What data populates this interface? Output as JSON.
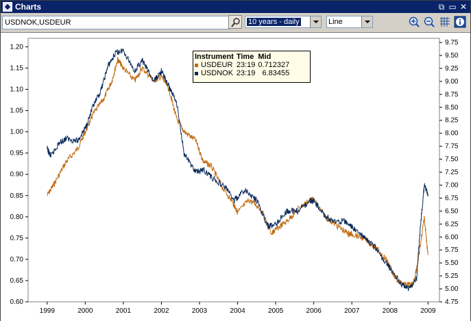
{
  "window": {
    "title": "Charts"
  },
  "titlebar_buttons": [
    {
      "icon": "restore-icon",
      "glyph": "⧉"
    },
    {
      "icon": "minimize-icon",
      "glyph": "▭"
    },
    {
      "icon": "close-icon",
      "glyph": "✕"
    }
  ],
  "toolbar": {
    "symbol_value": "USDNOK,USDEUR",
    "range_value": "10 years - daily",
    "chart_type_value": "Line",
    "tools": [
      "zoom-in-icon",
      "zoom-out-icon",
      "grid-icon",
      "info-icon"
    ]
  },
  "legend": {
    "headers": {
      "instrument": "Instrument",
      "time": "Time",
      "mid": "Mid"
    },
    "rows": [
      {
        "instrument": "USDEUR",
        "time": "23:19",
        "mid": "0.712327",
        "color": "#c06a10"
      },
      {
        "instrument": "USDNOK",
        "time": "23:19",
        "mid": "6.83455",
        "color": "#0a2a5a"
      }
    ]
  },
  "chart_data": {
    "type": "line",
    "x_ticks": [
      "1999",
      "2000",
      "2001",
      "2002",
      "2003",
      "2004",
      "2005",
      "2006",
      "2007",
      "2008",
      "2009"
    ],
    "y_left": {
      "ticks": [
        "0.60",
        "0.65",
        "0.70",
        "0.75",
        "0.80",
        "0.85",
        "0.90",
        "0.95",
        "1.00",
        "1.05",
        "1.10",
        "1.15",
        "1.20"
      ],
      "min": 0.6,
      "max": 1.22
    },
    "y_right": {
      "ticks": [
        "4.75",
        "5.00",
        "5.25",
        "5.50",
        "5.75",
        "6.00",
        "6.25",
        "6.50",
        "6.75",
        "7.00",
        "7.25",
        "7.50",
        "7.75",
        "8.00",
        "8.25",
        "8.50",
        "8.75",
        "9.00",
        "9.25",
        "9.50",
        "9.75"
      ],
      "min": 4.75,
      "max": 9.83
    },
    "series": [
      {
        "name": "USDEUR",
        "axis": "left",
        "color": "#c06a10",
        "x": [
          1999.0,
          1999.2,
          1999.5,
          1999.8,
          2000.0,
          2000.2,
          2000.5,
          2000.7,
          2000.85,
          2001.0,
          2001.3,
          2001.5,
          2001.8,
          2002.0,
          2002.2,
          2002.4,
          2002.6,
          2002.9,
          2003.1,
          2003.3,
          2003.6,
          2003.9,
          2004.0,
          2004.3,
          2004.6,
          2004.9,
          2005.0,
          2005.3,
          2005.6,
          2005.9,
          2006.0,
          2006.3,
          2006.6,
          2006.9,
          2007.0,
          2007.3,
          2007.6,
          2007.9,
          2008.0,
          2008.2,
          2008.4,
          2008.6,
          2008.75,
          2008.9,
          2009.0
        ],
        "y": [
          0.85,
          0.88,
          0.93,
          0.96,
          1.0,
          1.04,
          1.08,
          1.12,
          1.17,
          1.15,
          1.12,
          1.15,
          1.12,
          1.13,
          1.1,
          1.03,
          1.0,
          0.98,
          0.93,
          0.92,
          0.87,
          0.83,
          0.81,
          0.84,
          0.82,
          0.76,
          0.77,
          0.79,
          0.82,
          0.84,
          0.84,
          0.8,
          0.78,
          0.76,
          0.76,
          0.75,
          0.73,
          0.7,
          0.68,
          0.65,
          0.64,
          0.64,
          0.7,
          0.8,
          0.71
        ]
      },
      {
        "name": "USDNOK",
        "axis": "right",
        "color": "#0a2a5a",
        "x": [
          1999.0,
          1999.1,
          1999.3,
          1999.5,
          1999.8,
          2000.0,
          2000.2,
          2000.4,
          2000.6,
          2000.8,
          2001.0,
          2001.3,
          2001.5,
          2001.8,
          2002.0,
          2002.2,
          2002.4,
          2002.6,
          2002.9,
          2003.1,
          2003.4,
          2003.7,
          2003.9,
          2004.2,
          2004.5,
          2004.8,
          2005.0,
          2005.3,
          2005.6,
          2005.9,
          2006.0,
          2006.3,
          2006.5,
          2006.8,
          2007.0,
          2007.3,
          2007.6,
          2007.9,
          2008.0,
          2008.3,
          2008.5,
          2008.7,
          2008.8,
          2008.9,
          2009.0
        ],
        "y": [
          7.7,
          7.55,
          7.8,
          7.9,
          7.85,
          8.1,
          8.5,
          8.8,
          9.3,
          9.55,
          9.6,
          9.2,
          9.4,
          9.0,
          9.2,
          8.9,
          8.6,
          7.6,
          7.25,
          7.3,
          7.1,
          6.95,
          6.7,
          6.9,
          6.7,
          6.2,
          6.25,
          6.5,
          6.5,
          6.7,
          6.7,
          6.4,
          6.3,
          6.3,
          6.2,
          6.0,
          5.8,
          5.5,
          5.4,
          5.1,
          5.0,
          5.2,
          6.2,
          7.0,
          6.83
        ]
      }
    ]
  }
}
